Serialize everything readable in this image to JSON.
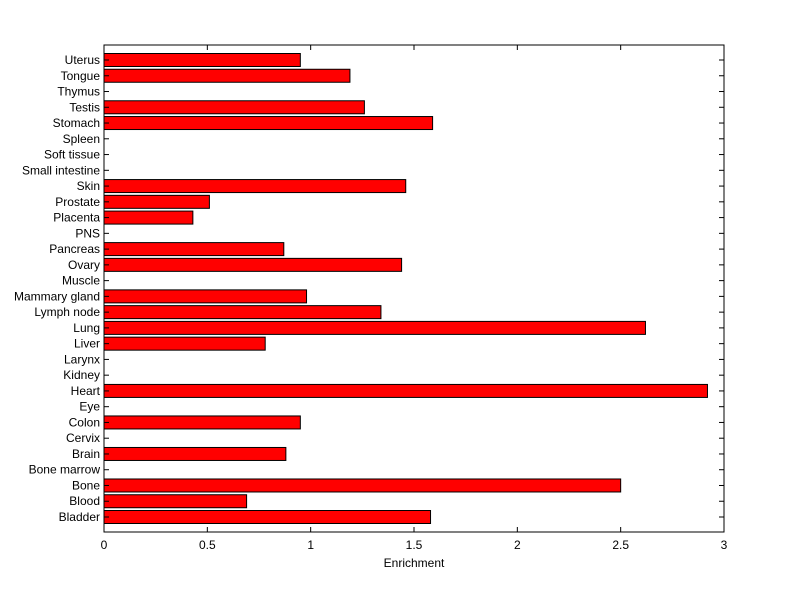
{
  "chart_data": {
    "type": "bar",
    "orientation": "horizontal",
    "xlabel": "Enrichment",
    "ylabel": "",
    "title": "",
    "xlim": [
      0,
      3
    ],
    "xticks": [
      "0",
      "0.5",
      "1",
      "1.5",
      "2",
      "2.5",
      "3"
    ],
    "grid": false,
    "bar_color": "#ff0000",
    "categories": [
      "Bladder",
      "Blood",
      "Bone",
      "Bone marrow",
      "Brain",
      "Cervix",
      "Colon",
      "Eye",
      "Heart",
      "Kidney",
      "Larynx",
      "Liver",
      "Lung",
      "Lymph node",
      "Mammary gland",
      "Muscle",
      "Ovary",
      "Pancreas",
      "PNS",
      "Placenta",
      "Prostate",
      "Skin",
      "Small intestine",
      "Soft tissue",
      "Spleen",
      "Stomach",
      "Testis",
      "Thymus",
      "Tongue",
      "Uterus"
    ],
    "values": [
      1.58,
      0.69,
      2.5,
      0,
      0.88,
      0,
      0.95,
      0,
      2.92,
      0,
      0,
      0.78,
      2.62,
      1.34,
      0.98,
      0,
      1.44,
      0.87,
      0,
      0.43,
      0.51,
      1.46,
      0,
      0,
      0,
      1.59,
      1.26,
      0,
      1.19,
      0.95
    ]
  }
}
